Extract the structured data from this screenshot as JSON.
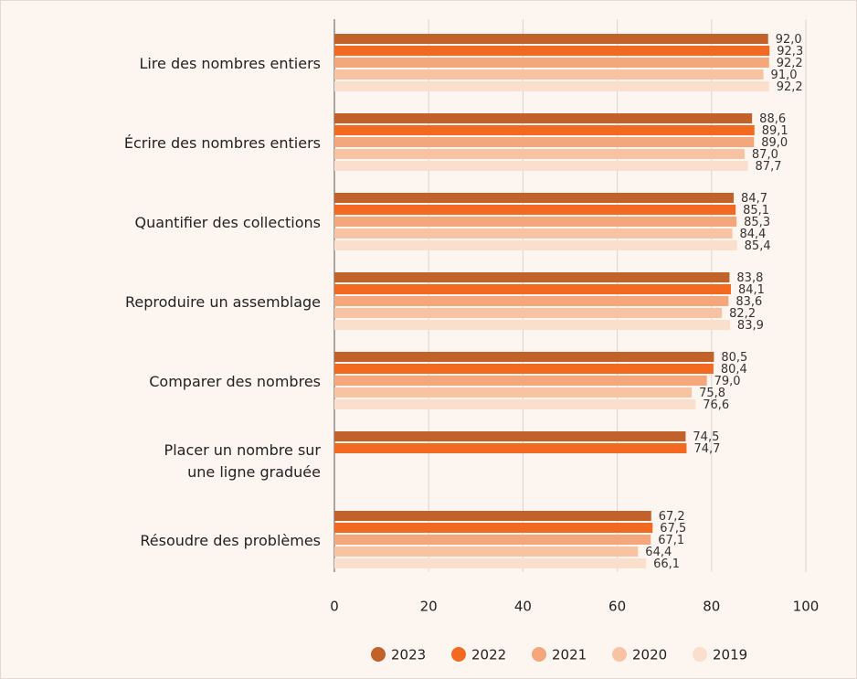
{
  "chart_data": {
    "type": "bar",
    "orientation": "horizontal",
    "categories": [
      "Lire des nombres entiers",
      "Écrire des nombres entiers",
      "Quantifier des collections",
      "Reproduire un assemblage",
      "Comparer des nombres",
      "Placer un nombre sur\nune ligne graduée",
      "Résoudre des problèmes"
    ],
    "series": [
      {
        "name": "2023",
        "color": "#c1622b",
        "values": [
          92.0,
          88.6,
          84.7,
          83.8,
          80.5,
          74.5,
          67.2
        ],
        "value_labels": [
          "92,0",
          "88,6",
          "84,7",
          "83,8",
          "80,5",
          "74,5",
          "67,2"
        ]
      },
      {
        "name": "2022",
        "color": "#f26a21",
        "values": [
          92.3,
          89.1,
          85.1,
          84.1,
          80.4,
          74.7,
          67.5
        ],
        "value_labels": [
          "92,3",
          "89,1",
          "85,1",
          "84,1",
          "80,4",
          "74,7",
          "67,5"
        ]
      },
      {
        "name": "2021",
        "color": "#f4a77a",
        "values": [
          92.2,
          89.0,
          85.3,
          83.6,
          79.0,
          null,
          67.1
        ],
        "value_labels": [
          "92,2",
          "89,0",
          "85,3",
          "83,6",
          "79,0",
          null,
          "67,1"
        ]
      },
      {
        "name": "2020",
        "color": "#f7c3a3",
        "values": [
          91.0,
          87.0,
          84.4,
          82.2,
          75.8,
          null,
          64.4
        ],
        "value_labels": [
          "91,0",
          "87,0",
          "84,4",
          "82,2",
          "75,8",
          null,
          "64,4"
        ]
      },
      {
        "name": "2019",
        "color": "#fadfcc",
        "values": [
          92.2,
          87.7,
          85.4,
          83.9,
          76.6,
          null,
          66.1
        ],
        "value_labels": [
          "92,2",
          "87,7",
          "85,4",
          "83,9",
          "76,6",
          null,
          "66,1"
        ]
      }
    ],
    "xlim": [
      0,
      100
    ],
    "xticks": [
      0,
      20,
      40,
      60,
      80,
      100
    ],
    "grid": true,
    "legend": "bottom"
  }
}
